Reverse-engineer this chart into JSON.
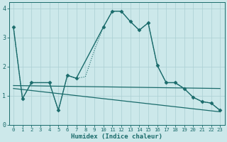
{
  "xlabel": "Humidex (Indice chaleur)",
  "bg_color": "#cce8ea",
  "grid_color": "#aacfd2",
  "line_color": "#1a6b6b",
  "xlim": [
    -0.5,
    23.5
  ],
  "ylim": [
    0,
    4.2
  ],
  "yticks": [
    0,
    1,
    2,
    3,
    4
  ],
  "series": [
    {
      "x": [
        0,
        1,
        2,
        4,
        5,
        6,
        7,
        10,
        11,
        12,
        13,
        14,
        15,
        16,
        17,
        18,
        19,
        20,
        21,
        22,
        23
      ],
      "y": [
        3.35,
        0.9,
        1.45,
        1.45,
        0.5,
        1.7,
        1.6,
        3.35,
        3.9,
        3.9,
        3.55,
        3.25,
        3.5,
        2.05,
        1.45,
        1.45,
        1.25,
        0.95,
        0.8,
        0.75,
        0.5
      ],
      "marker": "D",
      "markersize": 2.5,
      "linewidth": 1.0,
      "linestyle": "solid"
    },
    {
      "x": [
        0,
        1,
        2,
        3,
        4,
        5,
        6,
        7,
        8,
        9,
        10,
        11,
        12,
        13,
        14,
        15,
        16,
        17,
        18,
        19,
        20,
        21,
        22,
        23
      ],
      "y": [
        3.35,
        0.9,
        1.45,
        1.45,
        1.45,
        0.5,
        1.7,
        1.6,
        1.65,
        2.55,
        3.35,
        3.9,
        3.9,
        3.55,
        3.25,
        3.5,
        2.05,
        1.45,
        1.45,
        1.25,
        0.95,
        0.8,
        0.75,
        0.5
      ],
      "marker": "",
      "markersize": 0,
      "linewidth": 0.8,
      "linestyle": "dotted"
    },
    {
      "x": [
        0,
        23
      ],
      "y": [
        1.35,
        1.25
      ],
      "marker": "",
      "markersize": 0,
      "linewidth": 0.9,
      "linestyle": "solid"
    },
    {
      "x": [
        0,
        23
      ],
      "y": [
        1.25,
        0.45
      ],
      "marker": "",
      "markersize": 0,
      "linewidth": 0.9,
      "linestyle": "solid"
    }
  ]
}
